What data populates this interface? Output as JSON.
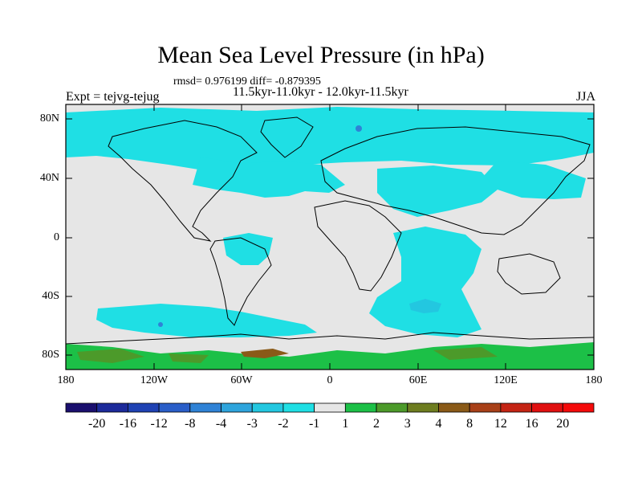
{
  "title": "Mean Sea Level Pressure (in hPa)",
  "stats": "rmsd= 0.976199 diff= -0.879395",
  "subtitle": "11.5kyr-11.0kyr - 12.0kyr-11.5kyr",
  "experiment": "Expt = tejvg-tejug",
  "season": "JJA",
  "lat_labels": [
    "80N",
    "40N",
    "0",
    "40S",
    "80S"
  ],
  "lon_labels": [
    "180",
    "120W",
    "60W",
    "0",
    "60E",
    "120E",
    "180"
  ],
  "colorbar": {
    "labels": [
      "-20",
      "-16",
      "-12",
      "-8",
      "-4",
      "-3",
      "-2",
      "-1",
      "1",
      "2",
      "3",
      "4",
      "8",
      "12",
      "16",
      "20"
    ],
    "colors": [
      "#1a0f6e",
      "#1c2a9a",
      "#1f42b3",
      "#2a5ec8",
      "#2f82d6",
      "#2ea4dc",
      "#23c7e0",
      "#1fdfe4",
      "#e6e6e6",
      "#1cc047",
      "#4c9a2a",
      "#6e7d20",
      "#8a5a18",
      "#a84018",
      "#c42414",
      "#e01010",
      "#f40a0a"
    ]
  },
  "map_colors": {
    "background": "#e6e6e6",
    "negative_light": "#1fdfe4",
    "negative_mid": "#23c7e0",
    "negative_dark": "#2f82d6",
    "positive_light": "#1cc047",
    "positive_dark": "#4c9a2a",
    "positive_brown": "#8a5a18"
  }
}
